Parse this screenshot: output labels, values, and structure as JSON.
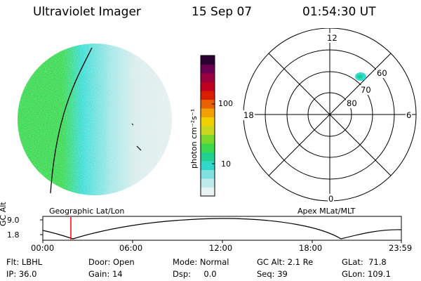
{
  "header": {
    "title": "Ultraviolet Imager",
    "date": "15 Sep 07",
    "time": "01:54:30 UT"
  },
  "colorbar": {
    "unit_label": "photon cm⁻²s⁻¹",
    "ticks": [
      "100",
      "10"
    ],
    "colors": [
      "#e8f4f4",
      "#bfeaea",
      "#7fe0e0",
      "#2fd8c8",
      "#20d090",
      "#3ad84a",
      "#7ad82a",
      "#c8d820",
      "#f0d000",
      "#f0a000",
      "#e86000",
      "#d82000",
      "#c00020",
      "#9a0040",
      "#6a0050",
      "#2a0030"
    ]
  },
  "left_panel": {
    "caption": "Geographic Lat/Lon",
    "color_scheme": {
      "dense": "#32d84a",
      "mid": "#32dcd2",
      "light": "#d8ecec"
    }
  },
  "polar_plot": {
    "caption": "Apex MLat/MLT",
    "mlt_labels": {
      "top": "12",
      "left": "18",
      "right": "6",
      "bottom": "0"
    },
    "lat_labels": [
      "60",
      "70",
      "80"
    ],
    "blob_color": "#32dcd2"
  },
  "altitude_plot": {
    "ylabel": "GC Alt",
    "yticks": [
      "9.0",
      "1.8"
    ],
    "xticks": [
      "00:00",
      "06:00",
      "12:00",
      "18:00",
      "23:59"
    ],
    "marker_color": "#ff0000"
  },
  "status": {
    "row1": [
      {
        "label": "Flt:",
        "value": "LBHL"
      },
      {
        "label": "Door:",
        "value": "Open"
      },
      {
        "label": "Mode:",
        "value": "Normal"
      },
      {
        "label": "GC Alt:",
        "value": "2.1 Re"
      },
      {
        "label": "GLat:",
        "value": "71.8"
      }
    ],
    "row2": [
      {
        "label": "IP:",
        "value": "36.0"
      },
      {
        "label": "Gain:",
        "value": "14"
      },
      {
        "label": "Dsp:",
        "value": "0.0"
      },
      {
        "label": "Seq:",
        "value": "39"
      },
      {
        "label": "GLon:",
        "value": "109.1"
      }
    ]
  }
}
